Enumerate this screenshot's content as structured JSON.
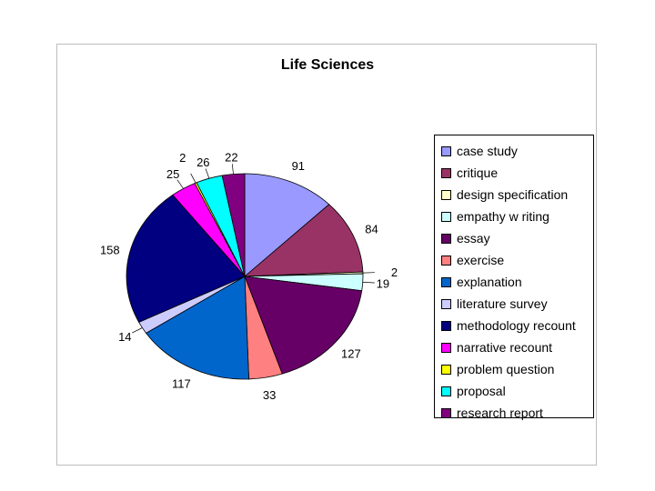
{
  "chart_data": {
    "type": "pie",
    "title": "Life Sciences",
    "legend_position": "right",
    "categories": [
      "case study",
      "critique",
      "design specification",
      "empathy w riting",
      "essay",
      "exercise",
      "explanation",
      "literature survey",
      "methodology recount",
      "narrative recount",
      "problem question",
      "proposal",
      "research report"
    ],
    "values": [
      91,
      84,
      2,
      19,
      127,
      33,
      117,
      14,
      158,
      25,
      2,
      26,
      22
    ],
    "labels": [
      "91",
      "84",
      "2",
      "19",
      "127",
      "33",
      "117",
      "14",
      "158",
      "25",
      "2",
      "26",
      "22"
    ],
    "colors": [
      "#9999ff",
      "#993366",
      "#ffffcc",
      "#ccffff",
      "#660066",
      "#ff8080",
      "#0066cc",
      "#ccccff",
      "#000080",
      "#ff00ff",
      "#ffff00",
      "#00ffff",
      "#800080"
    ]
  }
}
